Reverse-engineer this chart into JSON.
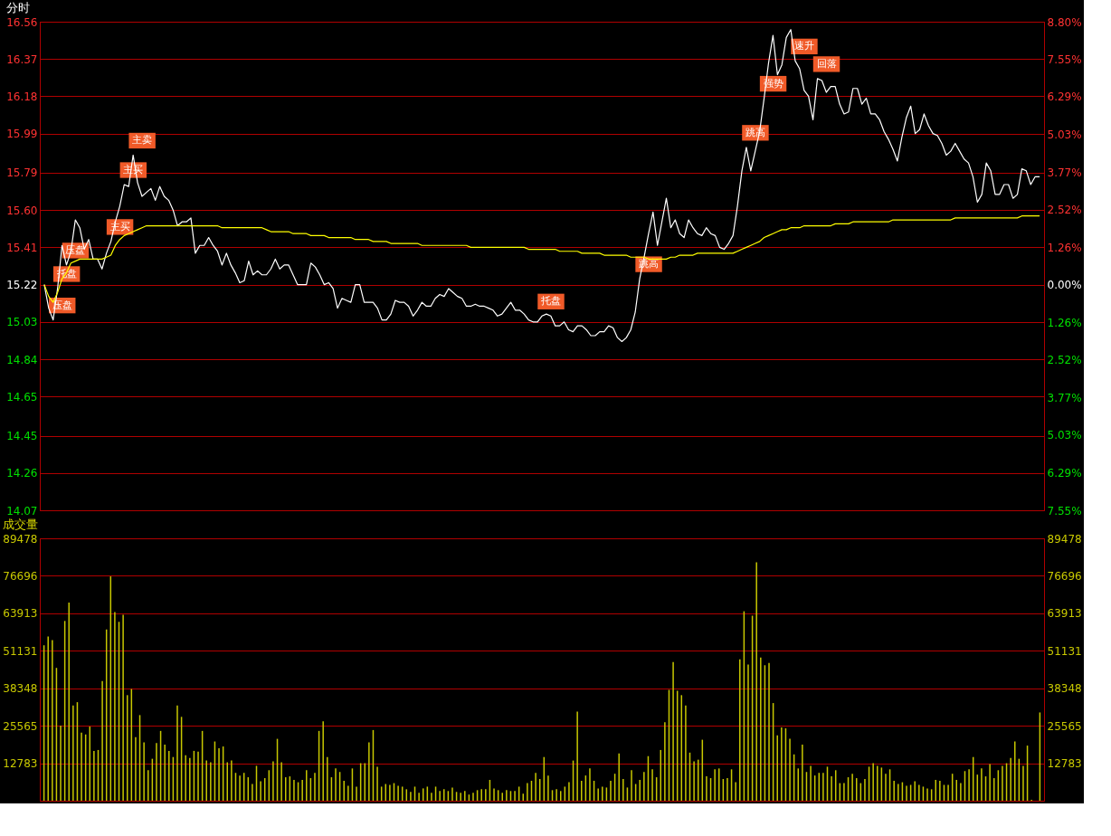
{
  "chart_data": [
    {
      "type": "line",
      "title": "分时",
      "categories": [
        null,
        null,
        null,
        null,
        null,
        null,
        null,
        null,
        null,
        null,
        null,
        null,
        null,
        null,
        null,
        null,
        null,
        null,
        null,
        null,
        null,
        null,
        null,
        null,
        null,
        null,
        null,
        null,
        null,
        null,
        null,
        null,
        null,
        null,
        null,
        null,
        null,
        null,
        null,
        null,
        null,
        null,
        null,
        null,
        null,
        null,
        null,
        null,
        null,
        null,
        null,
        null,
        null,
        null,
        null,
        null,
        null,
        null,
        null,
        null,
        null,
        null,
        null,
        null,
        null,
        null,
        null,
        null,
        null,
        null,
        null,
        null,
        null,
        null,
        null,
        null,
        null,
        null,
        null,
        null,
        null,
        null,
        null,
        null,
        null,
        null,
        null,
        null,
        null,
        null,
        null,
        null,
        null,
        null,
        null,
        null,
        null,
        null,
        null,
        null,
        null,
        null,
        null,
        null,
        null,
        null,
        null,
        null,
        null,
        null,
        null,
        null,
        null,
        null,
        null,
        null,
        null,
        null,
        null,
        null,
        null,
        null,
        null,
        null,
        null,
        null,
        null,
        null,
        null,
        null,
        null,
        null,
        null,
        null,
        null,
        null,
        null,
        null,
        null,
        null,
        null,
        null,
        null,
        null,
        null,
        null,
        null,
        null,
        null,
        null,
        null,
        null,
        null,
        null,
        null,
        null,
        null,
        null,
        null,
        null,
        null,
        null,
        null,
        null,
        null,
        null,
        null,
        null,
        null,
        null,
        null,
        null,
        null,
        null,
        null,
        null,
        null,
        null,
        null,
        null,
        null,
        null,
        null,
        null,
        null,
        null,
        null,
        null,
        null,
        null,
        null,
        null,
        null,
        null,
        null,
        null,
        null,
        null,
        null,
        null,
        null,
        null,
        null,
        null,
        null,
        null,
        null,
        null,
        null,
        null,
        null,
        null,
        null,
        null,
        null,
        null,
        null,
        null,
        null,
        null,
        null,
        null,
        null,
        null,
        null
      ],
      "series": [
        {
          "color": "#ffffff",
          "values": [
            15.22,
            15.1,
            15.04,
            15.2,
            15.42,
            15.32,
            15.39,
            15.55,
            15.51,
            15.4,
            15.45,
            15.35,
            15.35,
            15.3,
            15.38,
            15.44,
            15.54,
            15.62,
            15.73,
            15.72,
            15.88,
            15.74,
            15.67,
            15.69,
            15.71,
            15.65,
            15.72,
            15.67,
            15.65,
            15.6,
            15.52,
            15.54,
            15.54,
            15.56,
            15.38,
            15.42,
            15.42,
            15.46,
            15.42,
            15.39,
            15.32,
            15.38,
            15.32,
            15.28,
            15.23,
            15.24,
            15.34,
            15.27,
            15.29,
            15.27,
            15.27,
            15.3,
            15.35,
            15.3,
            15.32,
            15.32,
            15.27,
            15.22,
            15.22,
            15.22,
            15.33,
            15.31,
            15.27,
            15.22,
            15.23,
            15.2,
            15.1,
            15.15,
            15.14,
            15.13,
            15.22,
            15.22,
            15.13,
            15.13,
            15.13,
            15.1,
            15.04,
            15.04,
            15.07,
            15.14,
            15.13,
            15.13,
            15.11,
            15.06,
            15.09,
            15.13,
            15.11,
            15.11,
            15.15,
            15.17,
            15.16,
            15.2,
            15.18,
            15.16,
            15.15,
            15.11,
            15.11,
            15.12,
            15.11,
            15.11,
            15.1,
            15.09,
            15.06,
            15.07,
            15.1,
            15.13,
            15.09,
            15.09,
            15.07,
            15.04,
            15.03,
            15.03,
            15.06,
            15.07,
            15.06,
            15.01,
            15.01,
            15.03,
            14.99,
            14.98,
            15.01,
            15.01,
            14.99,
            14.96,
            14.96,
            14.98,
            14.98,
            15.01,
            15.0,
            14.95,
            14.93,
            14.95,
            14.99,
            15.08,
            15.25,
            15.36,
            15.48,
            15.59,
            15.42,
            15.54,
            15.66,
            15.51,
            15.55,
            15.48,
            15.46,
            15.55,
            15.51,
            15.48,
            15.47,
            15.51,
            15.48,
            15.47,
            15.41,
            15.4,
            15.43,
            15.47,
            15.62,
            15.8,
            15.92,
            15.8,
            15.9,
            16.0,
            16.17,
            16.35,
            16.49,
            16.29,
            16.34,
            16.48,
            16.52,
            16.36,
            16.32,
            16.21,
            16.18,
            16.06,
            16.27,
            16.26,
            16.2,
            16.23,
            16.23,
            16.14,
            16.09,
            16.1,
            16.22,
            16.22,
            16.14,
            16.17,
            16.09,
            16.09,
            16.06,
            16.0,
            15.96,
            15.91,
            15.85,
            15.97,
            16.07,
            16.13,
            15.99,
            16.01,
            16.09,
            16.03,
            15.99,
            15.98,
            15.94,
            15.88,
            15.9,
            15.94,
            15.9,
            15.86,
            15.84,
            15.77,
            15.64,
            15.68,
            15.84,
            15.8,
            15.68,
            15.68,
            15.73,
            15.73,
            15.66,
            15.68,
            15.81,
            15.8,
            15.73,
            15.77,
            15.77
          ],
          "value_labels": [
            null,
            null,
            "压盘",
            "托盘",
            null,
            "压盘",
            null,
            null,
            null,
            null,
            null,
            null,
            null,
            null,
            null,
            "主买",
            null,
            null,
            "主买",
            null,
            "主卖",
            null,
            null,
            null,
            null,
            null,
            null,
            null,
            null,
            null,
            null,
            null,
            null,
            null,
            null,
            null,
            null,
            null,
            null,
            null,
            null,
            null,
            null,
            null,
            null,
            null,
            null,
            null,
            null,
            null,
            null,
            null,
            null,
            null,
            null,
            null,
            null,
            null,
            null,
            null,
            null,
            null,
            null,
            null,
            null,
            null,
            null,
            null,
            null,
            null,
            null,
            null,
            null,
            null,
            null,
            null,
            null,
            null,
            null,
            null,
            null,
            null,
            null,
            null,
            null,
            null,
            null,
            null,
            null,
            null,
            null,
            null,
            null,
            null,
            null,
            null,
            null,
            null,
            null,
            null,
            null,
            null,
            null,
            null,
            null,
            null,
            null,
            null,
            null,
            null,
            null,
            null,
            "托盘",
            null,
            null,
            null,
            null,
            null,
            null,
            null,
            null,
            null,
            null,
            null,
            null,
            null,
            null,
            null,
            null,
            null,
            null,
            null,
            null,
            null,
            "跳高",
            null,
            null,
            null,
            null,
            null,
            null,
            null,
            null,
            null,
            null,
            null,
            null,
            null,
            null,
            null,
            null,
            null,
            null,
            null,
            null,
            null,
            null,
            null,
            "跳高",
            null,
            null,
            null,
            "强势",
            null,
            null,
            null,
            null,
            null,
            null,
            "速升",
            null,
            null,
            null,
            null,
            "回落",
            null,
            null,
            null,
            null,
            null,
            null,
            null,
            null,
            null,
            null,
            null,
            null,
            null,
            null,
            null,
            null,
            null,
            null,
            null,
            null,
            null,
            null,
            null,
            null,
            null,
            null,
            null,
            null,
            null,
            null,
            null,
            null,
            null,
            null,
            null,
            null,
            null,
            null,
            null,
            null,
            null,
            null,
            null,
            null,
            null,
            null,
            null,
            null,
            null,
            null
          ]
        },
        {
          "color": "#ffff00",
          "values": [
            15.22,
            15.16,
            15.13,
            15.18,
            15.25,
            15.28,
            15.33,
            15.34,
            15.35,
            15.35,
            15.35,
            15.35,
            15.35,
            15.35,
            15.36,
            15.37,
            15.42,
            15.45,
            15.47,
            15.48,
            15.49,
            15.5,
            15.51,
            15.52,
            15.52,
            15.52,
            15.52,
            15.52,
            15.52,
            15.52,
            15.52,
            15.52,
            15.52,
            15.52,
            15.52,
            15.52,
            15.52,
            15.52,
            15.52,
            15.52,
            15.51,
            15.51,
            15.51,
            15.51,
            15.51,
            15.51,
            15.51,
            15.51,
            15.51,
            15.51,
            15.5,
            15.49,
            15.49,
            15.49,
            15.49,
            15.49,
            15.48,
            15.48,
            15.48,
            15.48,
            15.47,
            15.47,
            15.47,
            15.47,
            15.46,
            15.46,
            15.46,
            15.46,
            15.46,
            15.46,
            15.45,
            15.45,
            15.45,
            15.45,
            15.44,
            15.44,
            15.44,
            15.44,
            15.43,
            15.43,
            15.43,
            15.43,
            15.43,
            15.43,
            15.43,
            15.42,
            15.42,
            15.42,
            15.42,
            15.42,
            15.42,
            15.42,
            15.42,
            15.42,
            15.42,
            15.42,
            15.41,
            15.41,
            15.41,
            15.41,
            15.41,
            15.41,
            15.41,
            15.41,
            15.41,
            15.41,
            15.41,
            15.41,
            15.41,
            15.4,
            15.4,
            15.4,
            15.4,
            15.4,
            15.4,
            15.4,
            15.39,
            15.39,
            15.39,
            15.39,
            15.39,
            15.38,
            15.38,
            15.38,
            15.38,
            15.38,
            15.37,
            15.37,
            15.37,
            15.37,
            15.37,
            15.37,
            15.36,
            15.36,
            15.36,
            15.36,
            15.35,
            15.35,
            15.35,
            15.35,
            15.35,
            15.36,
            15.36,
            15.37,
            15.37,
            15.37,
            15.37,
            15.38,
            15.38,
            15.38,
            15.38,
            15.38,
            15.38,
            15.38,
            15.38,
            15.38,
            15.39,
            15.4,
            15.41,
            15.42,
            15.43,
            15.44,
            15.46,
            15.47,
            15.48,
            15.49,
            15.5,
            15.5,
            15.51,
            15.51,
            15.51,
            15.52,
            15.52,
            15.52,
            15.52,
            15.52,
            15.52,
            15.52,
            15.53,
            15.53,
            15.53,
            15.53,
            15.54,
            15.54,
            15.54,
            15.54,
            15.54,
            15.54,
            15.54,
            15.54,
            15.54,
            15.55,
            15.55,
            15.55,
            15.55,
            15.55,
            15.55,
            15.55,
            15.55,
            15.55,
            15.55,
            15.55,
            15.55,
            15.55,
            15.55,
            15.56,
            15.56,
            15.56,
            15.56,
            15.56,
            15.56,
            15.56,
            15.56,
            15.56,
            15.56,
            15.56,
            15.56,
            15.56,
            15.56,
            15.56,
            15.57,
            15.57,
            15.57,
            15.57,
            15.57
          ]
        }
      ],
      "ylim": [
        14.07,
        16.56
      ],
      "yticks": [
        16.56,
        16.37,
        16.18,
        15.99,
        15.79,
        {
          "value": 15.6,
          "label": "15.60"
        },
        15.41,
        15.22,
        15.03,
        14.84,
        14.65,
        14.45,
        14.26,
        14.07
      ],
      "y2lim": [
        -7.55,
        8.8
      ],
      "y2ticks": [
        {
          "value": 8.8,
          "label": "8.80%"
        },
        {
          "value": 7.55,
          "label": "7.55%"
        },
        {
          "value": 6.29,
          "label": "6.29%"
        },
        {
          "value": 5.03,
          "label": "5.03%"
        },
        {
          "value": 3.77,
          "label": "3.77%"
        },
        {
          "value": 2.52,
          "label": "2.52%"
        },
        {
          "value": 1.26,
          "label": "1.26%"
        },
        {
          "value": 0,
          "label": "0.00%"
        },
        {
          "value": -1.26,
          "label": "1.26%"
        },
        {
          "value": -2.52,
          "label": "2.52%"
        },
        {
          "value": -3.77,
          "label": "3.77%"
        },
        {
          "value": -5.03,
          "label": "5.03%"
        },
        {
          "value": -6.29,
          "label": "6.29%"
        },
        {
          "value": -7.55,
          "label": "7.55%"
        }
      ],
      "grid": "y",
      "legend": false,
      "marker": "none",
      "line_style": "solid"
    },
    {
      "type": "bar",
      "title": "成交量",
      "categories": [
        null,
        null,
        null,
        null,
        null,
        null,
        null,
        null,
        null,
        null,
        null,
        null,
        null,
        null,
        null,
        null,
        null,
        null,
        null,
        null,
        null,
        null,
        null,
        null,
        null,
        null,
        null,
        null,
        null,
        null,
        null,
        null,
        null,
        null,
        null,
        null,
        null,
        null,
        null,
        null,
        null,
        null,
        null,
        null,
        null,
        null,
        null,
        null,
        null,
        null,
        null,
        null,
        null,
        null,
        null,
        null,
        null,
        null,
        null,
        null,
        null,
        null,
        null,
        null,
        null,
        null,
        null,
        null,
        null,
        null,
        null,
        null,
        null,
        null,
        null,
        null,
        null,
        null,
        null,
        null,
        null,
        null,
        null,
        null,
        null,
        null,
        null,
        null,
        null,
        null,
        null,
        null,
        null,
        null,
        null,
        null,
        null,
        null,
        null,
        null,
        null,
        null,
        null,
        null,
        null,
        null,
        null,
        null,
        null,
        null,
        null,
        null,
        null,
        null,
        null,
        null,
        null,
        null,
        null,
        null,
        null,
        null,
        null,
        null,
        null,
        null,
        null,
        null,
        null,
        null,
        null,
        null,
        null,
        null,
        null,
        null,
        null,
        null,
        null,
        null,
        null,
        null,
        null,
        null,
        null,
        null,
        null,
        null,
        null,
        null,
        null,
        null,
        null,
        null,
        null,
        null,
        null,
        null,
        null,
        null,
        null,
        null,
        null,
        null,
        null,
        null,
        null,
        null,
        null,
        null,
        null,
        null,
        null,
        null,
        null,
        null,
        null,
        null,
        null,
        null,
        null,
        null,
        null,
        null,
        null,
        null,
        null,
        null,
        null,
        null,
        null,
        null,
        null,
        null,
        null,
        null,
        null,
        null,
        null,
        null,
        null,
        null,
        null,
        null,
        null,
        null,
        null,
        null,
        null,
        null,
        null,
        null,
        null,
        null,
        null,
        null,
        null,
        null,
        null,
        null,
        null,
        null,
        null,
        null,
        null,
        null,
        null,
        null,
        null,
        null,
        null,
        null,
        null,
        null,
        null,
        null,
        null,
        null,
        null,
        null
      ],
      "color": "#c8c800",
      "values": [
        53000,
        56000,
        54800,
        45300,
        25600,
        61300,
        67600,
        32500,
        33600,
        23200,
        22600,
        25300,
        17000,
        17300,
        40800,
        58400,
        76500,
        64300,
        61000,
        63400,
        36000,
        38100,
        21700,
        29200,
        19900,
        10400,
        14300,
        19700,
        23800,
        19100,
        17000,
        14900,
        32500,
        28600,
        15500,
        14600,
        17000,
        16700,
        23800,
        13700,
        13100,
        20200,
        17900,
        18500,
        13100,
        13700,
        9500,
        8600,
        9500,
        8000,
        5700,
        11900,
        6600,
        7700,
        10400,
        13400,
        21100,
        13100,
        8000,
        8300,
        7100,
        6300,
        7100,
        10400,
        7700,
        9500,
        23800,
        27100,
        14900,
        8000,
        11000,
        9800,
        6800,
        5100,
        11000,
        4800,
        12800,
        12800,
        19900,
        24100,
        11600,
        4800,
        5700,
        5400,
        6000,
        5100,
        4800,
        3900,
        3000,
        4800,
        2700,
        4200,
        4800,
        2700,
        4800,
        3300,
        3900,
        3300,
        4500,
        3000,
        2700,
        3300,
        2100,
        2700,
        3600,
        3900,
        3900,
        7100,
        4200,
        3600,
        2700,
        3600,
        3300,
        3300,
        4800,
        2400,
        6000,
        6800,
        9500,
        7400,
        14900,
        8600,
        3600,
        3900,
        3300,
        4800,
        6300,
        13700,
        30400,
        6800,
        8600,
        11000,
        6800,
        4200,
        4800,
        4500,
        6800,
        9200,
        16100,
        7400,
        4500,
        10400,
        5700,
        7100,
        9800,
        15200,
        10700,
        8000,
        17300,
        26800,
        37800,
        47300,
        37500,
        36000,
        32500,
        16400,
        13400,
        14000,
        20800,
        8300,
        7700,
        10700,
        11000,
        7400,
        7700,
        10700,
        6300,
        48200,
        64600,
        46400,
        63100,
        81300,
        48800,
        46200,
        47000,
        33300,
        22300,
        25000,
        24700,
        21100,
        15800,
        11000,
        19100,
        9800,
        11900,
        8600,
        9500,
        9500,
        11600,
        8300,
        10400,
        6000,
        6000,
        8000,
        9200,
        7700,
        6000,
        7400,
        11600,
        12800,
        11900,
        11300,
        9200,
        10700,
        6800,
        5700,
        6300,
        5100,
        5400,
        6600,
        5400,
        4800,
        4200,
        3900,
        7100,
        6800,
        5400,
        5400,
        9200,
        7100,
        6000,
        10100,
        10700,
        14900,
        8900,
        11000,
        8300,
        12500,
        7700,
        10400,
        11900,
        12800,
        14600,
        20200,
        14300,
        11900,
        18800,
        300,
        null,
        30100
      ],
      "ylim": [
        0,
        89478
      ],
      "yticks": [
        12783,
        25565,
        38348,
        51131,
        63913,
        76696,
        89478
      ],
      "y2lim": [
        0,
        89478
      ],
      "y2ticks": [
        12783,
        25565,
        38348,
        51131,
        63913,
        76696,
        89478
      ],
      "grid": "y",
      "legend": false
    }
  ]
}
